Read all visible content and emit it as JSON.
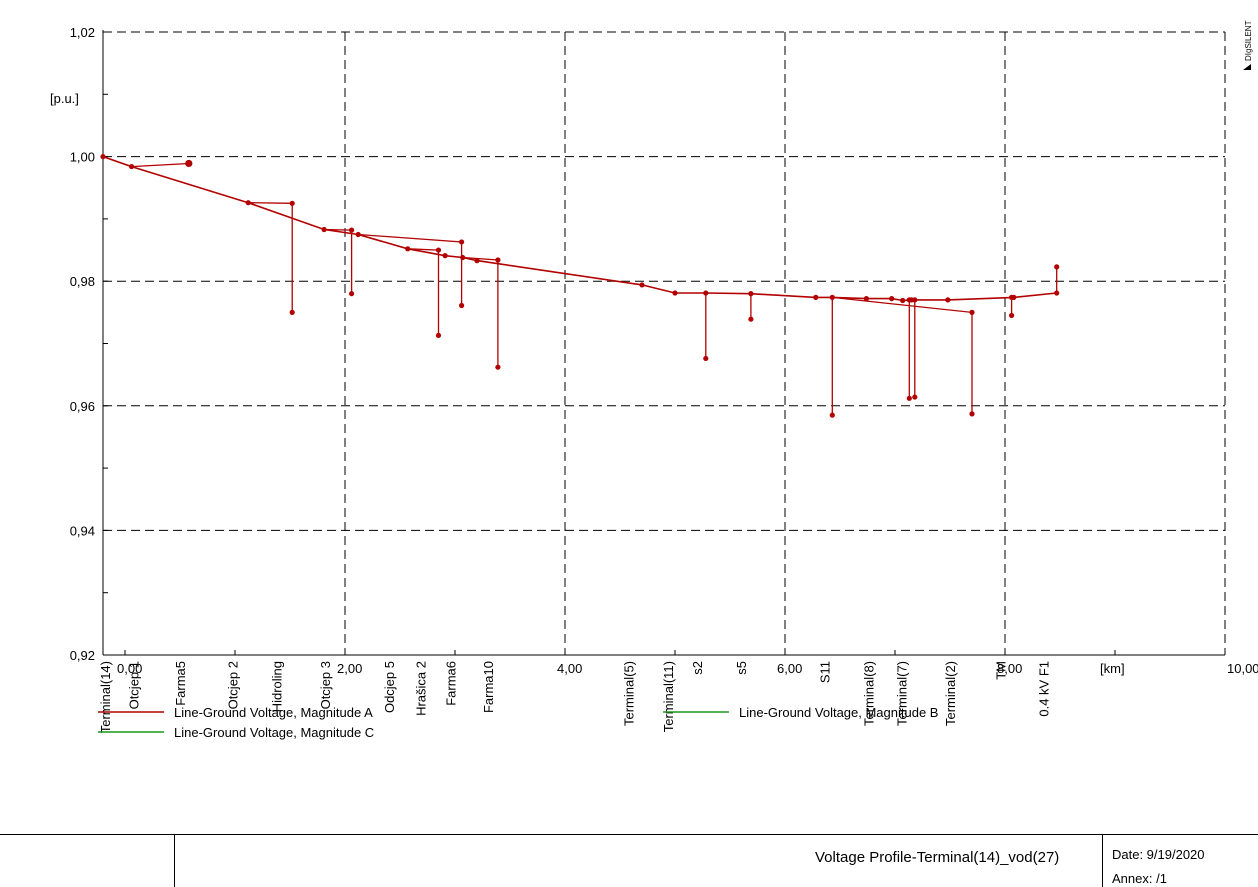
{
  "chart_data": {
    "type": "line",
    "title": "Voltage Profile-Terminal(14)_vod(27)",
    "ylabel": "[p.u.]",
    "xlabel": "[km]",
    "xlim": [
      -0.2,
      10.0
    ],
    "ylim": [
      0.92,
      1.02
    ],
    "grid": true,
    "x_ticks": [
      {
        "value": 0,
        "label": "0,00"
      },
      {
        "value": 2,
        "label": "2,00"
      },
      {
        "value": 4,
        "label": "4,00"
      },
      {
        "value": 6,
        "label": "6,00"
      },
      {
        "value": 8,
        "label": "8,00"
      },
      {
        "value": 10,
        "label": "10,00"
      }
    ],
    "y_ticks": [
      {
        "value": 1.02,
        "label": "1,02"
      },
      {
        "value": 1.0,
        "label": "1,00"
      },
      {
        "value": 0.98,
        "label": "0,98"
      },
      {
        "value": 0.96,
        "label": "0,96"
      },
      {
        "value": 0.94,
        "label": "0,94"
      },
      {
        "value": 0.92,
        "label": "0,92"
      }
    ],
    "node_labels": [
      {
        "x": -0.2,
        "text": "Terminal(14)"
      },
      {
        "x": 0.06,
        "text": "Otcjep  1"
      },
      {
        "x": 0.48,
        "text": "Farma5"
      },
      {
        "x": 0.96,
        "text": "Otcjep 2"
      },
      {
        "x": 1.36,
        "text": "Hidroling"
      },
      {
        "x": 1.8,
        "text": "Otcjep 3"
      },
      {
        "x": 2.38,
        "text": "Odcjep 5"
      },
      {
        "x": 2.67,
        "text": "Hrašica 2"
      },
      {
        "x": 2.94,
        "text": "Farma6"
      },
      {
        "x": 3.28,
        "text": "Farma10"
      },
      {
        "x": 4.56,
        "text": "Terminal(5)"
      },
      {
        "x": 4.92,
        "text": "Terminal(11)"
      },
      {
        "x": 5.18,
        "text": "s2"
      },
      {
        "x": 5.58,
        "text": "s5"
      },
      {
        "x": 6.34,
        "text": "S11"
      },
      {
        "x": 6.74,
        "text": "Terminal(8)"
      },
      {
        "x": 7.04,
        "text": "Terminal(7)"
      },
      {
        "x": 7.48,
        "text": "Terminal(2)"
      },
      {
        "x": 7.94,
        "text": "TM"
      },
      {
        "x": 8.33,
        "text": "0.4 kV F1"
      }
    ],
    "series": [
      {
        "name": "Line-Ground Voltage, Magnitude A",
        "color": "#b30000",
        "main_path": [
          [
            -0.2,
            1.0
          ],
          [
            0.06,
            0.9984
          ],
          [
            1.12,
            0.9926
          ],
          [
            1.81,
            0.9883
          ],
          [
            2.12,
            0.9875
          ],
          [
            2.57,
            0.9852
          ],
          [
            2.91,
            0.9841
          ],
          [
            3.07,
            0.9838
          ],
          [
            3.2,
            0.9833
          ],
          [
            4.7,
            0.9794
          ],
          [
            5.0,
            0.9781
          ],
          [
            5.28,
            0.9781
          ],
          [
            5.69,
            0.978
          ],
          [
            6.28,
            0.9774
          ],
          [
            6.43,
            0.9774
          ],
          [
            6.74,
            0.9772
          ],
          [
            6.97,
            0.9772
          ],
          [
            7.07,
            0.9769
          ],
          [
            7.15,
            0.977
          ],
          [
            7.48,
            0.977
          ],
          [
            8.08,
            0.9774
          ],
          [
            8.47,
            0.9781
          ]
        ],
        "branches": [
          [
            [
              0.06,
              0.9984
            ],
            [
              0.58,
              0.9989
            ]
          ],
          [
            [
              1.12,
              0.9926
            ],
            [
              1.52,
              0.9925
            ],
            [
              1.52,
              0.975
            ]
          ],
          [
            [
              1.81,
              0.9883
            ],
            [
              2.06,
              0.9882
            ],
            [
              2.06,
              0.978
            ]
          ],
          [
            [
              2.12,
              0.9875
            ],
            [
              3.06,
              0.9863
            ],
            [
              3.06,
              0.9761
            ]
          ],
          [
            [
              2.57,
              0.9852
            ],
            [
              2.85,
              0.985
            ],
            [
              2.85,
              0.9713
            ]
          ],
          [
            [
              3.07,
              0.9838
            ],
            [
              3.39,
              0.9834
            ],
            [
              3.39,
              0.9662
            ]
          ],
          [
            [
              5.28,
              0.9781
            ],
            [
              5.28,
              0.9676
            ]
          ],
          [
            [
              5.69,
              0.978
            ],
            [
              5.69,
              0.9739
            ]
          ],
          [
            [
              6.43,
              0.9774
            ],
            [
              6.43,
              0.9585
            ]
          ],
          [
            [
              6.43,
              0.9774
            ],
            [
              7.7,
              0.975
            ],
            [
              7.7,
              0.9587
            ]
          ],
          [
            [
              7.13,
              0.977
            ],
            [
              7.13,
              0.9612
            ]
          ],
          [
            [
              7.18,
              0.977
            ],
            [
              7.18,
              0.9614
            ]
          ],
          [
            [
              8.06,
              0.9774
            ],
            [
              8.06,
              0.9745
            ]
          ],
          [
            [
              8.47,
              0.9781
            ],
            [
              8.47,
              0.9823
            ]
          ]
        ]
      },
      {
        "name": "Line-Ground Voltage, Magnitude B",
        "color": "#1a9a1a"
      },
      {
        "name": "Line-Ground Voltage, Magnitude C",
        "color": "#1a9a1a"
      }
    ]
  },
  "footer": {
    "title": "Voltage Profile-Terminal(14)_vod(27)",
    "date": "Date: 9/19/2020",
    "annex": "Annex:   /1"
  },
  "brand": "DIgSILENT"
}
